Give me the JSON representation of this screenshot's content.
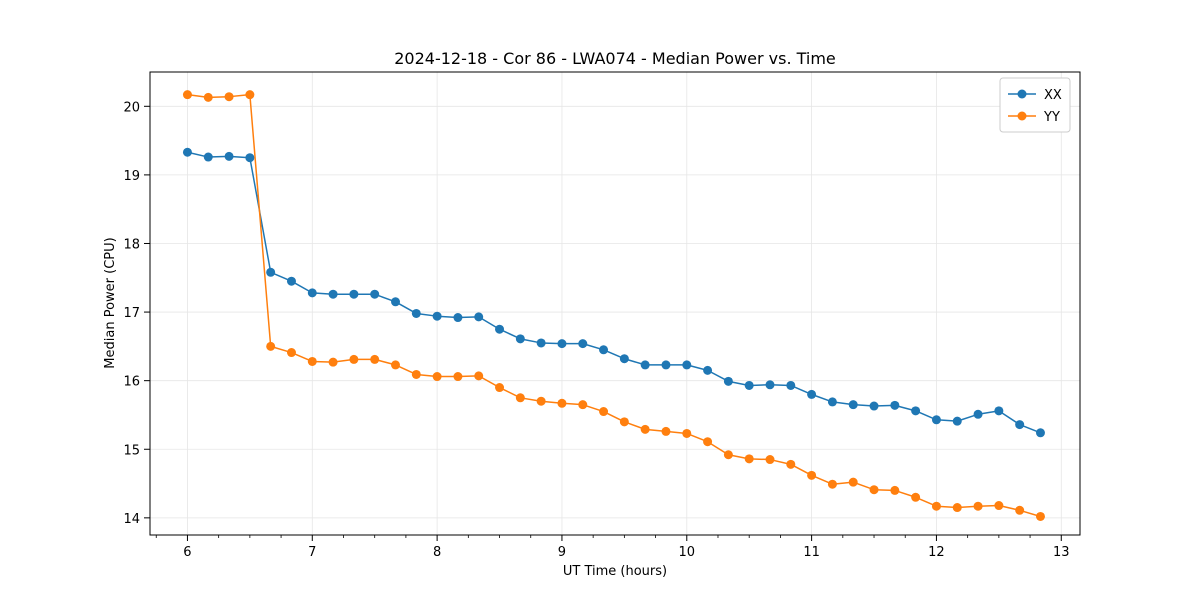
{
  "chart_data": {
    "type": "line",
    "title": "2024-12-18 - Cor 86 - LWA074 - Median Power vs. Time",
    "xlabel": "UT Time (hours)",
    "ylabel": "Median Power (CPU)",
    "xlim": [
      5.7,
      13.15
    ],
    "ylim": [
      13.75,
      20.5
    ],
    "xticks": [
      6,
      7,
      8,
      9,
      10,
      11,
      12,
      13
    ],
    "yticks": [
      14,
      15,
      16,
      17,
      18,
      19,
      20
    ],
    "grid": true,
    "legend_position": "top-right",
    "x": [
      6.0,
      6.1667,
      6.3333,
      6.5,
      6.6667,
      6.8333,
      7.0,
      7.1667,
      7.3333,
      7.5,
      7.6667,
      7.8333,
      8.0,
      8.1667,
      8.3333,
      8.5,
      8.6667,
      8.8333,
      9.0,
      9.1667,
      9.3333,
      9.5,
      9.6667,
      9.8333,
      10.0,
      10.1667,
      10.3333,
      10.5,
      10.6667,
      10.8333,
      11.0,
      11.1667,
      11.3333,
      11.5,
      11.6667,
      11.8333,
      12.0,
      12.1667,
      12.3333,
      12.5,
      12.6667,
      12.8333
    ],
    "series": [
      {
        "name": "XX",
        "color": "#1f77b4",
        "values": [
          19.33,
          19.26,
          19.27,
          19.25,
          17.58,
          17.45,
          17.28,
          17.26,
          17.26,
          17.26,
          17.15,
          16.98,
          16.94,
          16.92,
          16.93,
          16.75,
          16.61,
          16.55,
          16.54,
          16.54,
          16.45,
          16.32,
          16.23,
          16.23,
          16.23,
          16.15,
          15.99,
          15.93,
          15.94,
          15.93,
          15.8,
          15.69,
          15.65,
          15.63,
          15.64,
          15.56,
          15.43,
          15.41,
          15.51,
          15.56,
          15.36,
          15.24
        ]
      },
      {
        "name": "YY",
        "color": "#ff7f0e",
        "values": [
          20.17,
          20.13,
          20.14,
          20.17,
          16.5,
          16.41,
          16.28,
          16.27,
          16.31,
          16.31,
          16.23,
          16.09,
          16.06,
          16.06,
          16.07,
          15.9,
          15.75,
          15.7,
          15.67,
          15.65,
          15.55,
          15.4,
          15.29,
          15.26,
          15.23,
          15.11,
          14.92,
          14.86,
          14.85,
          14.78,
          14.62,
          14.49,
          14.52,
          14.41,
          14.4,
          14.3,
          14.17,
          14.15,
          14.17,
          14.18,
          14.11,
          14.02
        ]
      }
    ]
  }
}
